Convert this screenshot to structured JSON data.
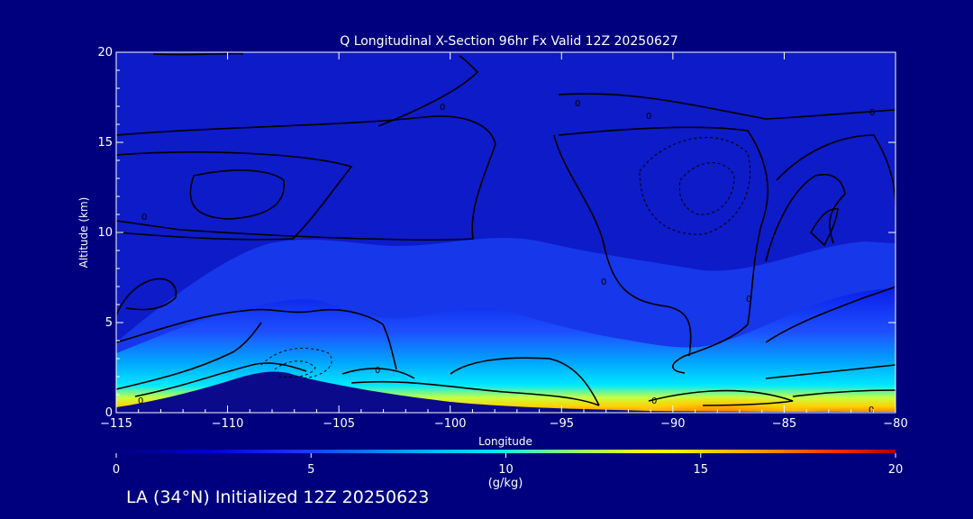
{
  "chart_data": {
    "type": "heatmap",
    "title": "Q Longitudinal X-Section 96hr  Fx Valid 12Z 20250627",
    "xlabel": "Longitude",
    "ylabel": "Altitude (km)",
    "xlim": [
      -115,
      -80
    ],
    "ylim": [
      0,
      20
    ],
    "x_ticks": [
      -115,
      -110,
      -105,
      -100,
      -95,
      -90,
      -85,
      -80
    ],
    "x_tick_labels": [
      "−115",
      "−110",
      "−105",
      "−100",
      "−95",
      "−90",
      "−85",
      "−80"
    ],
    "y_ticks": [
      0,
      5,
      10,
      15,
      20
    ],
    "y_tick_labels": [
      "0",
      "5",
      "10",
      "15",
      "20"
    ],
    "colorbar": {
      "min": 0,
      "max": 20,
      "ticks": [
        0,
        5,
        10,
        15,
        20
      ],
      "tick_labels": [
        "0",
        "5",
        "10",
        "15",
        "20"
      ],
      "label": "(g/kg)",
      "colors": [
        "#000080",
        "#0000c8",
        "#1e3cff",
        "#00a0ff",
        "#00e0ff",
        "#a0ff60",
        "#ffff00",
        "#ffa000",
        "#ff3000",
        "#b00000"
      ]
    },
    "field": "specific humidity Q (g/kg)",
    "moisture_layer_top_km": [
      [
        -115,
        4.0
      ],
      [
        -112,
        4.8
      ],
      [
        -109,
        5.8
      ],
      [
        -107,
        6.4
      ],
      [
        -105,
        6.0
      ],
      [
        -103,
        5.2
      ],
      [
        -100,
        5.5
      ],
      [
        -98,
        6.2
      ],
      [
        -95,
        5.6
      ],
      [
        -93,
        5.0
      ],
      [
        -91,
        4.6
      ],
      [
        -89,
        4.2
      ],
      [
        -87,
        4.6
      ],
      [
        -85,
        5.2
      ],
      [
        -83,
        6.2
      ],
      [
        -80,
        6.6
      ]
    ],
    "max_q_region": {
      "lon_range": [
        -91,
        -87
      ],
      "alt_range_km": [
        0,
        1
      ],
      "value_g_per_kg": 18
    },
    "terrain_km": [
      [
        -115,
        0.3
      ],
      [
        -113,
        0.6
      ],
      [
        -111,
        1.2
      ],
      [
        -109,
        1.8
      ],
      [
        -108,
        2.0
      ],
      [
        -107,
        1.7
      ],
      [
        -106,
        1.6
      ],
      [
        -104,
        1.3
      ],
      [
        -102,
        0.9
      ],
      [
        -100,
        0.6
      ],
      [
        -98,
        0.4
      ],
      [
        -95,
        0.3
      ],
      [
        -90,
        0.2
      ],
      [
        -85,
        0.15
      ],
      [
        -80,
        0.1
      ]
    ],
    "contour_labels": [
      "0",
      "0",
      "0",
      "0",
      "0",
      "0",
      "0",
      "0",
      "0",
      "0",
      "0"
    ]
  },
  "footer": "LA (34°N) Initialized 12Z 20250623"
}
